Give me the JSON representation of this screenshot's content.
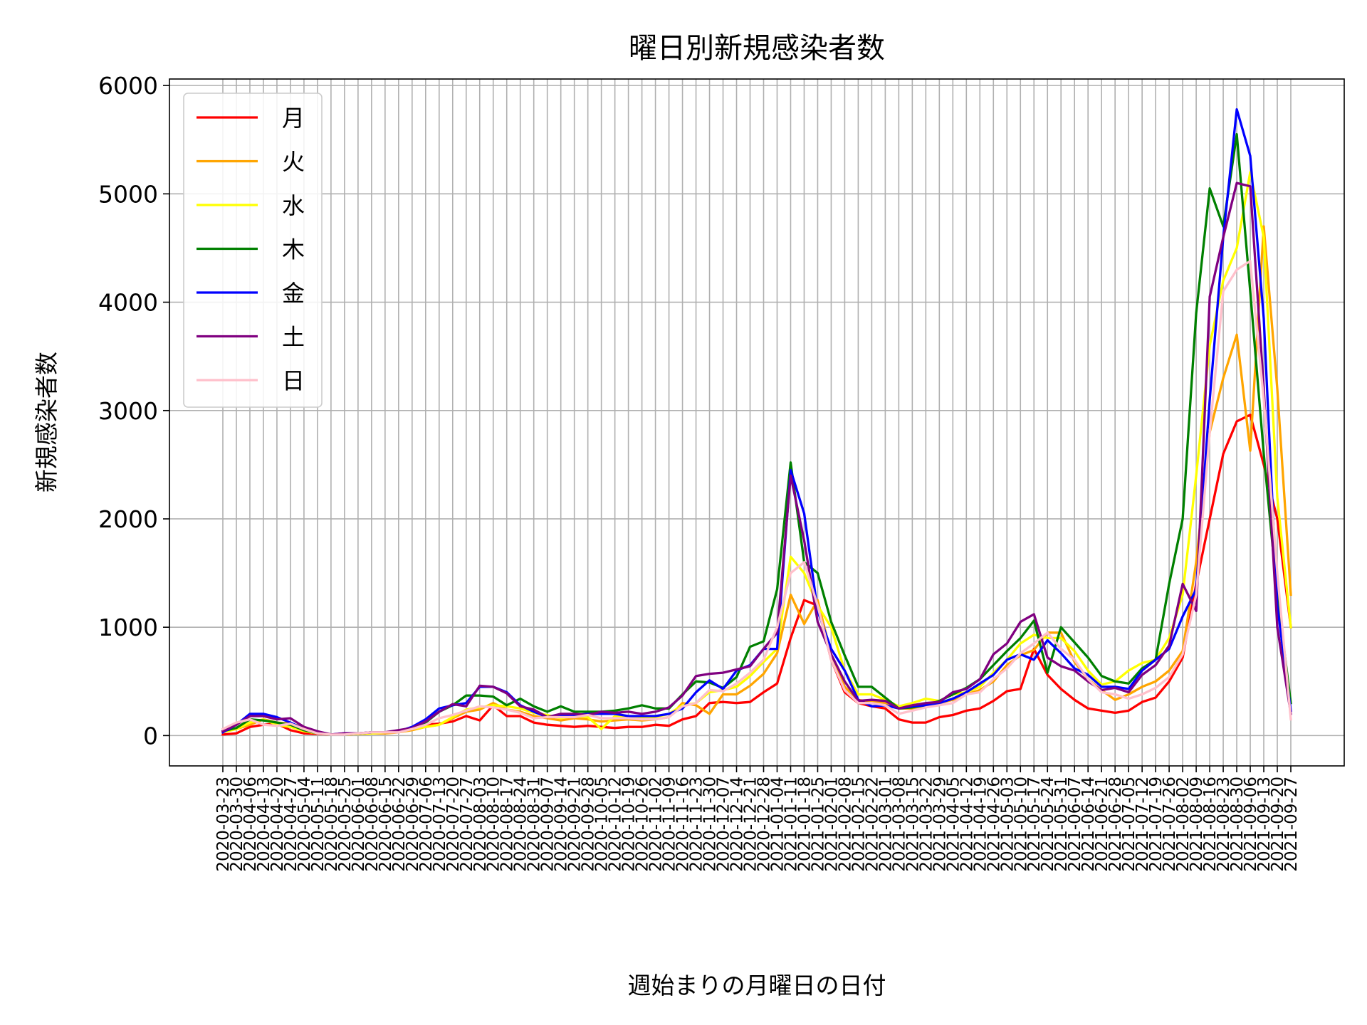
{
  "chart_data": {
    "type": "line",
    "title": "曜日別新規感染者数",
    "xlabel": "週始まりの月曜日の日付",
    "ylabel": "新規感染者数",
    "ylim": [
      -280,
      6060
    ],
    "yticks": [
      0,
      1000,
      2000,
      3000,
      4000,
      5000,
      6000
    ],
    "grid": true,
    "legend_position": "top-left",
    "categories": [
      "2020-03-23",
      "2020-03-30",
      "2020-04-06",
      "2020-04-13",
      "2020-04-20",
      "2020-04-27",
      "2020-05-04",
      "2020-05-11",
      "2020-05-18",
      "2020-05-25",
      "2020-06-01",
      "2020-06-08",
      "2020-06-15",
      "2020-06-22",
      "2020-06-29",
      "2020-07-06",
      "2020-07-13",
      "2020-07-20",
      "2020-07-27",
      "2020-08-03",
      "2020-08-10",
      "2020-08-17",
      "2020-08-24",
      "2020-08-31",
      "2020-09-07",
      "2020-09-14",
      "2020-09-21",
      "2020-09-28",
      "2020-10-05",
      "2020-10-12",
      "2020-10-19",
      "2020-10-26",
      "2020-11-02",
      "2020-11-09",
      "2020-11-16",
      "2020-11-23",
      "2020-11-30",
      "2020-12-07",
      "2020-12-14",
      "2020-12-21",
      "2020-12-28",
      "2021-01-04",
      "2021-01-11",
      "2021-01-18",
      "2021-01-25",
      "2021-02-01",
      "2021-02-08",
      "2021-02-15",
      "2021-02-22",
      "2021-03-01",
      "2021-03-08",
      "2021-03-15",
      "2021-03-22",
      "2021-03-29",
      "2021-04-05",
      "2021-04-12",
      "2021-04-19",
      "2021-04-26",
      "2021-05-03",
      "2021-05-10",
      "2021-05-17",
      "2021-05-24",
      "2021-05-31",
      "2021-06-07",
      "2021-06-14",
      "2021-06-21",
      "2021-06-28",
      "2021-07-05",
      "2021-07-12",
      "2021-07-19",
      "2021-07-26",
      "2021-08-02",
      "2021-08-09",
      "2021-08-16",
      "2021-08-23",
      "2021-08-30",
      "2021-09-06",
      "2021-09-13",
      "2021-09-20",
      "2021-09-27"
    ],
    "series": [
      {
        "name": "月",
        "color": "#ff0000",
        "values": [
          10,
          20,
          80,
          100,
          110,
          50,
          20,
          15,
          10,
          10,
          15,
          20,
          30,
          30,
          60,
          100,
          110,
          130,
          180,
          140,
          280,
          180,
          180,
          120,
          100,
          90,
          80,
          90,
          80,
          70,
          80,
          80,
          100,
          90,
          150,
          180,
          300,
          310,
          300,
          310,
          400,
          480,
          900,
          1250,
          1200,
          700,
          400,
          300,
          270,
          250,
          150,
          120,
          120,
          170,
          190,
          230,
          250,
          320,
          410,
          430,
          800,
          560,
          430,
          330,
          250,
          230,
          210,
          230,
          310,
          350,
          500,
          720,
          1400,
          2000,
          2600,
          2900,
          2960,
          2500,
          2000,
          1000
        ]
      },
      {
        "name": "火",
        "color": "#ffa500",
        "values": [
          40,
          60,
          100,
          150,
          120,
          110,
          80,
          30,
          10,
          10,
          15,
          20,
          20,
          30,
          50,
          80,
          100,
          160,
          220,
          240,
          300,
          240,
          220,
          180,
          160,
          140,
          160,
          150,
          130,
          140,
          150,
          140,
          150,
          170,
          300,
          280,
          200,
          380,
          380,
          460,
          570,
          760,
          1300,
          1030,
          1250,
          750,
          450,
          330,
          310,
          300,
          250,
          250,
          280,
          300,
          330,
          380,
          420,
          500,
          650,
          740,
          790,
          950,
          950,
          680,
          520,
          420,
          330,
          380,
          450,
          500,
          600,
          780,
          1600,
          2800,
          3300,
          3700,
          2630,
          4700,
          3200,
          1300
        ]
      },
      {
        "name": "水",
        "color": "#ffff00",
        "values": [
          30,
          60,
          120,
          150,
          100,
          80,
          40,
          20,
          10,
          10,
          15,
          20,
          30,
          30,
          60,
          80,
          100,
          170,
          240,
          260,
          280,
          270,
          250,
          210,
          190,
          160,
          180,
          170,
          60,
          180,
          180,
          160,
          170,
          200,
          280,
          300,
          400,
          420,
          450,
          550,
          680,
          800,
          1650,
          1500,
          1200,
          1000,
          600,
          380,
          380,
          330,
          270,
          300,
          340,
          320,
          380,
          400,
          450,
          580,
          700,
          850,
          930,
          900,
          900,
          780,
          600,
          470,
          500,
          600,
          670,
          700,
          900,
          1300,
          2400,
          3600,
          4200,
          4500,
          5200,
          4600,
          2200,
          1000
        ]
      },
      {
        "name": "木",
        "color": "#008000",
        "values": [
          40,
          70,
          150,
          140,
          120,
          100,
          50,
          20,
          10,
          10,
          20,
          30,
          30,
          40,
          70,
          120,
          220,
          280,
          370,
          370,
          360,
          280,
          340,
          270,
          220,
          270,
          220,
          220,
          220,
          230,
          250,
          280,
          250,
          250,
          380,
          500,
          490,
          440,
          540,
          820,
          870,
          1350,
          2520,
          1600,
          1500,
          1050,
          740,
          450,
          450,
          350,
          250,
          260,
          280,
          320,
          380,
          440,
          520,
          650,
          780,
          900,
          1060,
          580,
          1000,
          860,
          720,
          550,
          500,
          480,
          620,
          700,
          1400,
          2000,
          3900,
          5050,
          4700,
          5550,
          4100,
          2600,
          1300,
          300
        ]
      },
      {
        "name": "金",
        "color": "#0000ff",
        "values": [
          30,
          100,
          200,
          200,
          170,
          120,
          60,
          30,
          10,
          20,
          20,
          30,
          30,
          40,
          80,
          150,
          250,
          280,
          300,
          450,
          450,
          400,
          280,
          220,
          170,
          180,
          190,
          200,
          200,
          200,
          180,
          180,
          180,
          200,
          250,
          400,
          510,
          430,
          600,
          650,
          800,
          800,
          2450,
          2050,
          1150,
          800,
          600,
          330,
          270,
          280,
          250,
          270,
          280,
          300,
          340,
          400,
          480,
          560,
          700,
          750,
          700,
          880,
          760,
          620,
          560,
          450,
          450,
          430,
          600,
          700,
          800,
          1100,
          1350,
          3100,
          4600,
          5780,
          5350,
          3850,
          1200,
          230
        ]
      },
      {
        "name": "土",
        "color": "#800080",
        "values": [
          40,
          100,
          180,
          180,
          150,
          160,
          80,
          40,
          10,
          20,
          20,
          30,
          30,
          50,
          70,
          130,
          220,
          290,
          270,
          460,
          450,
          390,
          270,
          240,
          170,
          200,
          200,
          190,
          220,
          210,
          220,
          200,
          220,
          260,
          370,
          550,
          570,
          580,
          610,
          640,
          800,
          950,
          2400,
          1800,
          1050,
          750,
          500,
          320,
          330,
          320,
          250,
          280,
          300,
          310,
          400,
          430,
          520,
          750,
          850,
          1050,
          1120,
          720,
          640,
          600,
          500,
          420,
          440,
          400,
          560,
          650,
          830,
          1400,
          1150,
          4050,
          4600,
          5100,
          5070,
          3200,
          1000,
          200
        ]
      },
      {
        "name": "日",
        "color": "#ffc0cb",
        "values": [
          60,
          120,
          150,
          100,
          90,
          110,
          60,
          20,
          10,
          10,
          20,
          30,
          30,
          30,
          60,
          100,
          160,
          190,
          230,
          270,
          260,
          240,
          210,
          160,
          170,
          170,
          170,
          190,
          160,
          160,
          160,
          150,
          150,
          170,
          270,
          300,
          420,
          410,
          480,
          580,
          700,
          1000,
          1500,
          1600,
          1200,
          700,
          420,
          300,
          300,
          280,
          200,
          230,
          260,
          280,
          300,
          380,
          400,
          520,
          620,
          760,
          850,
          950,
          800,
          700,
          520,
          400,
          380,
          340,
          380,
          440,
          540,
          750,
          1300,
          2800,
          4100,
          4300,
          4380,
          3100,
          1500,
          150
        ]
      }
    ]
  }
}
